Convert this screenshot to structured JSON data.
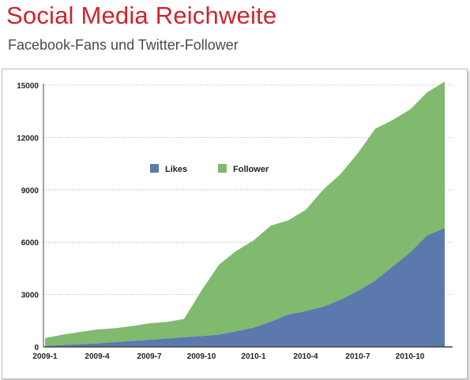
{
  "header": {
    "title": "Social Media Reichweite",
    "subtitle": "Facebook-Fans und Twitter-Follower"
  },
  "colors": {
    "title": "#d2232a",
    "likes": "#5c79ad",
    "follower": "#7fba6e",
    "grid": "#9a9a9a"
  },
  "chart_data": {
    "type": "area",
    "stacked": true,
    "title": "Social Media Reichweite",
    "subtitle": "Facebook-Fans und Twitter-Follower",
    "xlabel": "",
    "ylabel": "",
    "ylim": [
      0,
      15000
    ],
    "yticks": [
      "0",
      "3000",
      "6000",
      "9000",
      "12000",
      "15000"
    ],
    "yticks_values": [
      0,
      3000,
      6000,
      9000,
      12000,
      15000
    ],
    "grid": "horizontal dashed",
    "legend_position": "upper-left inside plot",
    "x": [
      "2009-1",
      "2009-2",
      "2009-3",
      "2009-4",
      "2009-5",
      "2009-6",
      "2009-7",
      "2009-8",
      "2009-9",
      "2009-10",
      "2009-11",
      "2009-12",
      "2010-1",
      "2010-2",
      "2010-3",
      "2010-4",
      "2010-5",
      "2010-6",
      "2010-7",
      "2010-8",
      "2010-9",
      "2010-10",
      "2010-11",
      "2010-12"
    ],
    "xtick_labels": [
      "2009-1",
      "2009-4",
      "2009-7",
      "2009-10",
      "2010-1",
      "2010-4",
      "2010-7",
      "2010-10"
    ],
    "xtick_indices": [
      0,
      3,
      6,
      9,
      12,
      15,
      18,
      21
    ],
    "series": [
      {
        "name": "Likes",
        "values": [
          50,
          100,
          150,
          200,
          270,
          340,
          400,
          480,
          550,
          620,
          700,
          900,
          1100,
          1450,
          1850,
          2050,
          2300,
          2700,
          3200,
          3800,
          4600,
          5400,
          6400,
          6800
        ]
      },
      {
        "name": "Follower",
        "values": [
          450,
          600,
          700,
          800,
          800,
          850,
          950,
          950,
          1050,
          2600,
          4000,
          4600,
          5000,
          5500,
          5400,
          5800,
          6700,
          7200,
          7900,
          8700,
          8400,
          8200,
          8200,
          8400
        ]
      }
    ]
  }
}
